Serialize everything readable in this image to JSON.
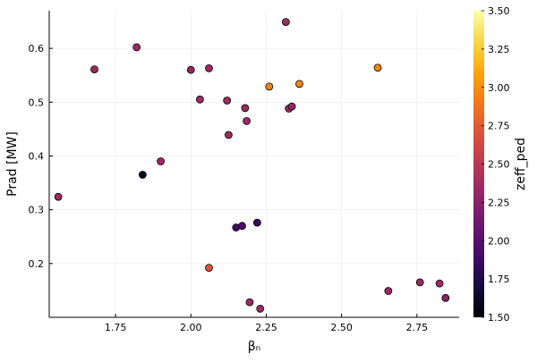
{
  "chart_data": {
    "type": "scatter",
    "xlabel": "βₙ",
    "ylabel": "Prad [MW]",
    "xlim": [
      1.53,
      2.89
    ],
    "ylim": [
      0.1,
      0.67
    ],
    "xticks": [
      1.75,
      2.0,
      2.25,
      2.5,
      2.75
    ],
    "xtick_labels": [
      "1.75",
      "2.00",
      "2.25",
      "2.50",
      "2.75"
    ],
    "yticks": [
      0.2,
      0.3,
      0.4,
      0.5,
      0.6
    ],
    "ytick_labels": [
      "0.2",
      "0.3",
      "0.4",
      "0.5",
      "0.6"
    ],
    "grid": true,
    "legend": "none",
    "colorbar": {
      "title": "zeff_ped",
      "range": [
        1.5,
        3.5
      ],
      "ticks": [
        1.5,
        1.75,
        2.0,
        2.25,
        2.5,
        2.75,
        3.0,
        3.25,
        3.5
      ],
      "tick_labels": [
        "1.50",
        "1.75",
        "2.00",
        "2.25",
        "2.50",
        "2.75",
        "3.00",
        "3.25",
        "3.50"
      ],
      "colormap": "inferno"
    },
    "points": [
      {
        "x": 1.56,
        "y": 0.324,
        "c": 2.35
      },
      {
        "x": 1.68,
        "y": 0.561,
        "c": 2.35
      },
      {
        "x": 1.82,
        "y": 0.602,
        "c": 2.35
      },
      {
        "x": 1.84,
        "y": 0.365,
        "c": 1.6
      },
      {
        "x": 1.9,
        "y": 0.39,
        "c": 2.35
      },
      {
        "x": 2.0,
        "y": 0.56,
        "c": 2.3
      },
      {
        "x": 2.03,
        "y": 0.505,
        "c": 2.35
      },
      {
        "x": 2.06,
        "y": 0.563,
        "c": 2.35
      },
      {
        "x": 2.06,
        "y": 0.192,
        "c": 2.7
      },
      {
        "x": 2.12,
        "y": 0.503,
        "c": 2.35
      },
      {
        "x": 2.125,
        "y": 0.439,
        "c": 2.35
      },
      {
        "x": 2.15,
        "y": 0.267,
        "c": 1.9
      },
      {
        "x": 2.17,
        "y": 0.27,
        "c": 1.95
      },
      {
        "x": 2.18,
        "y": 0.489,
        "c": 2.35
      },
      {
        "x": 2.185,
        "y": 0.465,
        "c": 2.35
      },
      {
        "x": 2.195,
        "y": 0.128,
        "c": 2.35
      },
      {
        "x": 2.22,
        "y": 0.276,
        "c": 1.85
      },
      {
        "x": 2.23,
        "y": 0.116,
        "c": 2.35
      },
      {
        "x": 2.26,
        "y": 0.529,
        "c": 2.95
      },
      {
        "x": 2.315,
        "y": 0.649,
        "c": 2.35
      },
      {
        "x": 2.325,
        "y": 0.488,
        "c": 2.35
      },
      {
        "x": 2.335,
        "y": 0.492,
        "c": 2.3
      },
      {
        "x": 2.36,
        "y": 0.534,
        "c": 2.95
      },
      {
        "x": 2.62,
        "y": 0.564,
        "c": 2.95
      },
      {
        "x": 2.655,
        "y": 0.149,
        "c": 2.35
      },
      {
        "x": 2.76,
        "y": 0.165,
        "c": 2.35
      },
      {
        "x": 2.825,
        "y": 0.163,
        "c": 2.35
      },
      {
        "x": 2.845,
        "y": 0.136,
        "c": 2.25
      }
    ]
  }
}
